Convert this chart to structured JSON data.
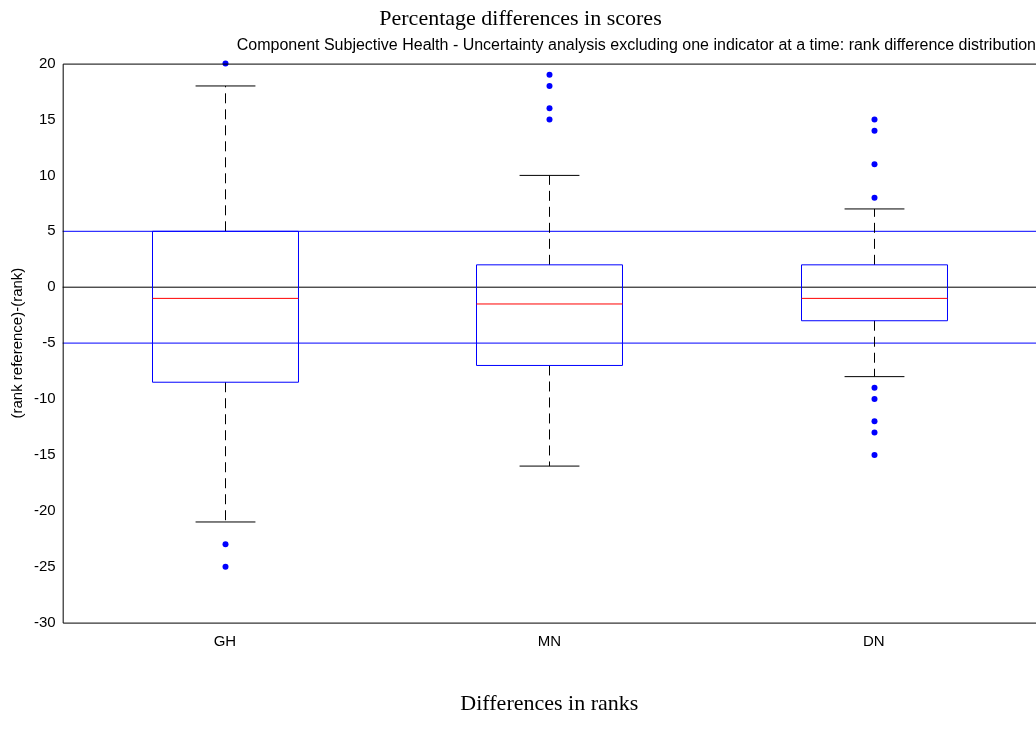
{
  "chart_data": {
    "type": "box",
    "title": "Percentage differences in scores",
    "subtitle": "Component Subjective Health - Uncertainty analysis excluding one indicator at a time: rank difference distribution",
    "xlabel": "Differences in ranks",
    "ylabel": "(rank reference)-(rank)",
    "categories": [
      "GH",
      "MN",
      "DN"
    ],
    "boxes": [
      {
        "low": -21,
        "q1": -8.5,
        "median": -1,
        "q3": 5,
        "high": 18,
        "outliers": [
          20,
          -23,
          -25
        ]
      },
      {
        "low": -16,
        "q1": -7,
        "median": -1.5,
        "q3": 2,
        "high": 10,
        "outliers": [
          15,
          16,
          18,
          19
        ]
      },
      {
        "low": -8,
        "q1": -3,
        "median": -1,
        "q3": 2,
        "high": 7,
        "outliers": [
          15,
          14,
          11,
          8,
          -9,
          -10,
          -12,
          -13,
          -15
        ]
      }
    ],
    "color": "#0000ff",
    "ylim": [
      -30,
      20
    ],
    "yticks": [
      -30,
      -25,
      -20,
      -15,
      -10,
      -5,
      0,
      5,
      10,
      15,
      20
    ],
    "grid": false,
    "legend": false,
    "marker": "circle",
    "ref_lines": [
      {
        "axis": "y",
        "value": 5,
        "color": "#0000ff"
      },
      {
        "axis": "y",
        "value": -5,
        "color": "#0000ff"
      },
      {
        "axis": "y",
        "value": 0,
        "color": "#000000"
      }
    ]
  }
}
